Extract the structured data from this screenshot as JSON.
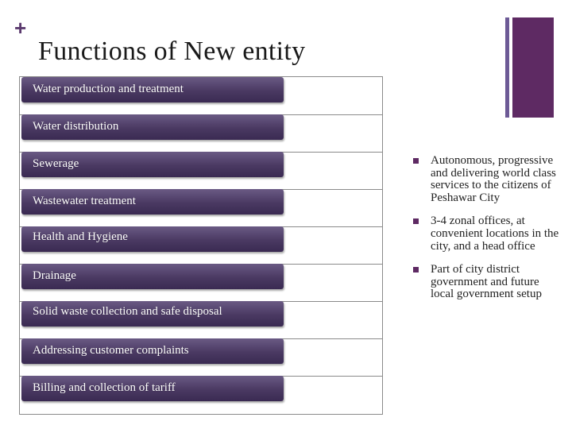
{
  "slide": {
    "plus_glyph": "+",
    "title": "Functions of New entity"
  },
  "functions": [
    {
      "label": "Water production and treatment"
    },
    {
      "label": "Water distribution"
    },
    {
      "label": "Sewerage"
    },
    {
      "label": "Wastewater treatment"
    },
    {
      "label": "Health and Hygiene"
    },
    {
      "label": "Drainage"
    },
    {
      "label": "Solid waste collection and safe disposal"
    },
    {
      "label": "Addressing customer complaints"
    },
    {
      "label": "Billing and collection of tariff"
    }
  ],
  "bullets": [
    {
      "text": "Autonomous, progressive and delivering world class services to the citizens of Peshawar City"
    },
    {
      "text": "3-4 zonal offices, at convenient locations in the city, and a head office"
    },
    {
      "text": "Part of city district government and future local government setup"
    }
  ],
  "colors": {
    "accent": "#5e2a63",
    "accent_light": "#6d5a96",
    "bar_top": "#6a5a84",
    "bar_bottom": "#3a2a52"
  }
}
